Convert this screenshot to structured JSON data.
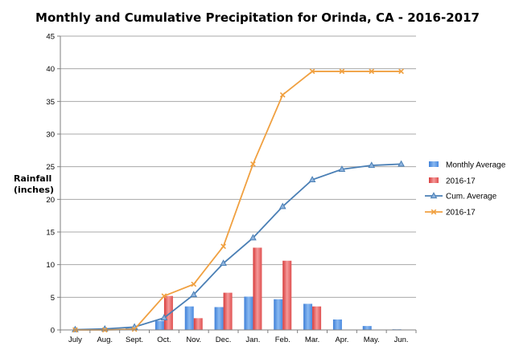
{
  "chart_data": {
    "type": "bar",
    "title": "Monthly and Cumulative Precipitation for Orinda, CA - 2016-2017",
    "ylabel_line1": "Rainfall",
    "ylabel_line2": "(inches)",
    "xlabel": "",
    "ylim": [
      0,
      45
    ],
    "ytick_step": 5,
    "yticks": [
      "0",
      "5",
      "10",
      "15",
      "20",
      "25",
      "30",
      "35",
      "40",
      "45"
    ],
    "categories": [
      "July",
      "Aug.",
      "Sept.",
      "Oct.",
      "Nov.",
      "Dec.",
      "Jan.",
      "Feb.",
      "Mar.",
      "Apr.",
      "May.",
      "Jun."
    ],
    "grid": true,
    "legend_position": "right",
    "bar_series": [
      {
        "name": "Monthly Average",
        "color": "#5b9bd5",
        "values": [
          0.05,
          0.1,
          0.3,
          1.4,
          3.6,
          3.5,
          5.1,
          4.7,
          4.0,
          1.6,
          0.6,
          0.1
        ]
      },
      {
        "name": "2016-17",
        "color": "#e05252",
        "values": [
          0,
          0,
          0,
          5.2,
          1.8,
          5.7,
          12.6,
          10.6,
          3.6,
          0,
          0,
          0
        ]
      }
    ],
    "line_series": [
      {
        "name": "Cum. Average",
        "color": "#4a7fb5",
        "marker": "triangle",
        "values": [
          0.05,
          0.15,
          0.45,
          1.85,
          5.4,
          10.2,
          14.1,
          18.9,
          23.0,
          24.6,
          25.2,
          25.4
        ]
      },
      {
        "name": "2016-17",
        "color": "#f0a040",
        "marker": "x",
        "values": [
          0,
          0,
          0.1,
          5.2,
          7.0,
          12.8,
          25.4,
          36.0,
          39.6,
          39.6,
          39.6,
          39.6
        ]
      }
    ]
  }
}
